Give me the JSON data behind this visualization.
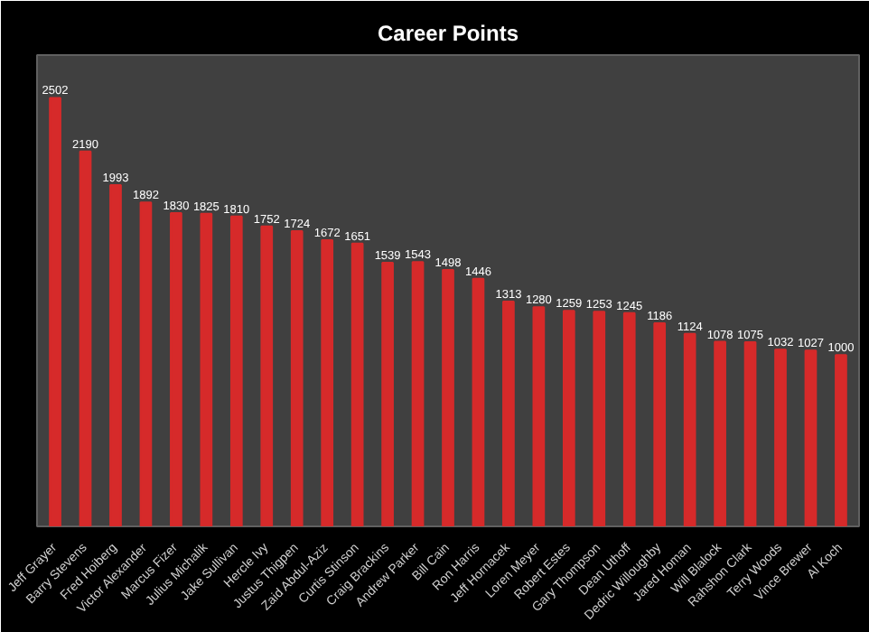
{
  "chart_data": {
    "type": "bar",
    "title": "Career Points",
    "categories": [
      "Jeff Grayer",
      "Barry Stevens",
      "Fred Hoiberg",
      "Victor Alexander",
      "Marcus Fizer",
      "Julius Michalik",
      "Jake Sullivan",
      "Hercle Ivy",
      "Justus Thigpen",
      "Zaid Abdul-Aziz",
      "Curtis Stinson",
      "Craig Brackins",
      "Andrew Parker",
      "Bill Cain",
      "Ron Harris",
      "Jeff Hornacek",
      "Loren Meyer",
      "Robert Estes",
      "Gary Thompson",
      "Dean Uthoff",
      "Dedric Willoughby",
      "Jared Homan",
      "Will Blalock",
      "Rahshon Clark",
      "Terry Woods",
      "Vince Brewer",
      "Al Koch"
    ],
    "values": [
      2502,
      2190,
      1993,
      1892,
      1830,
      1825,
      1810,
      1752,
      1724,
      1672,
      1651,
      1539,
      1543,
      1498,
      1446,
      1313,
      1280,
      1259,
      1253,
      1245,
      1186,
      1124,
      1078,
      1075,
      1032,
      1027,
      1000
    ],
    "color": "#d62a2a",
    "data_labels": true,
    "grid": false
  }
}
